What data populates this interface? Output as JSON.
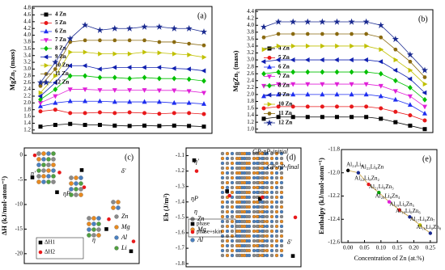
{
  "chart_data": [
    {
      "type": "line",
      "panel_label": "(a)",
      "ylabel": "MgZn₂ (mass)",
      "ylim": [
        1.1,
        4.85
      ],
      "yticks": [
        1.2,
        1.4,
        1.6,
        1.8,
        {
          "value": 2,
          "label": "2.0"
        },
        2.2,
        2.4,
        2.6,
        2.8,
        {
          "value": 3,
          "label": "3.0"
        },
        3.2,
        3.4,
        3.6,
        3.8,
        {
          "value": 4,
          "label": "4.0"
        },
        4.2,
        4.4,
        4.6,
        4.8
      ],
      "legend": "upper left",
      "series": [
        {
          "name": "4 Zn",
          "color": "#000000",
          "marker": "square",
          "values": [
            1.3,
            1.35,
            1.38,
            1.35,
            1.35,
            1.33,
            1.32,
            1.33,
            1.32,
            1.33,
            1.32,
            1.3
          ]
        },
        {
          "name": "5 Zn",
          "color": "#e8191b",
          "marker": "circle",
          "values": [
            1.75,
            1.8,
            1.7,
            1.7,
            1.72,
            1.7,
            1.72,
            1.7,
            1.68,
            1.7,
            1.7,
            1.67
          ]
        },
        {
          "name": "6 Zn",
          "color": "#1f2ff0",
          "marker": "triangle-up",
          "values": [
            1.9,
            2.0,
            2.05,
            2.05,
            2.05,
            2.03,
            2.03,
            2.03,
            2.03,
            2.0,
            2.0,
            1.97
          ]
        },
        {
          "name": "7 Zn",
          "color": "#e020d8",
          "marker": "triangle-down",
          "values": [
            2.0,
            2.2,
            2.4,
            2.4,
            2.38,
            2.38,
            2.38,
            2.38,
            2.37,
            2.37,
            2.35,
            2.3
          ]
        },
        {
          "name": "8 Zn",
          "color": "#00c000",
          "marker": "diamond",
          "values": [
            2.1,
            2.4,
            2.8,
            2.8,
            2.75,
            2.75,
            2.72,
            2.75,
            2.72,
            2.72,
            2.7,
            2.65
          ]
        },
        {
          "name": "9 Zn",
          "color": "#1020b0",
          "marker": "triangle-left",
          "values": [
            2.2,
            2.6,
            3.1,
            3.1,
            3.0,
            3.05,
            3.05,
            3.05,
            3.05,
            3.02,
            3.0,
            2.95
          ]
        },
        {
          "name": "10 Zn",
          "color": "#c0c000",
          "marker": "triangle-right",
          "values": [
            2.3,
            2.8,
            3.5,
            3.5,
            3.45,
            3.45,
            3.45,
            3.5,
            3.48,
            3.45,
            3.42,
            3.35
          ]
        },
        {
          "name": "11 Zn",
          "color": "#8a6a10",
          "marker": "hexagon",
          "values": [
            2.5,
            3.0,
            3.8,
            3.85,
            3.85,
            3.85,
            3.85,
            3.85,
            3.8,
            3.8,
            3.75,
            3.7
          ]
        },
        {
          "name": "12 Zn",
          "color": "#1a2a90",
          "marker": "star",
          "values": [
            2.6,
            3.2,
            3.9,
            4.3,
            4.15,
            4.2,
            4.2,
            4.25,
            4.25,
            4.2,
            4.2,
            4.1
          ]
        }
      ]
    },
    {
      "type": "line",
      "panel_label": "(b)",
      "ylabel": "MgZn₂ (mass)",
      "ylim": [
        0.9,
        4.45
      ],
      "yticks": [
        {
          "value": 1,
          "label": "1.0"
        },
        1.2,
        1.4,
        1.6,
        1.8,
        {
          "value": 2,
          "label": "2.0"
        },
        2.2,
        2.4,
        2.6,
        2.8,
        {
          "value": 3,
          "label": "3.0"
        },
        3.2,
        3.4,
        3.6,
        3.8,
        {
          "value": 4,
          "label": "4.0"
        },
        4.2,
        4.4
      ],
      "legend": "lower left",
      "series": [
        {
          "name": "4 Zn",
          "color": "#000000",
          "marker": "square",
          "values": [
            1.3,
            1.35,
            1.35,
            1.35,
            1.35,
            1.35,
            1.35,
            1.35,
            1.3,
            1.2,
            1.1,
            1.0
          ]
        },
        {
          "name": "5 Zn",
          "color": "#e8191b",
          "marker": "circle",
          "values": [
            1.6,
            1.65,
            1.65,
            1.65,
            1.65,
            1.65,
            1.65,
            1.65,
            1.6,
            1.5,
            1.4,
            1.25
          ]
        },
        {
          "name": "6 Zn",
          "color": "#1f2ff0",
          "marker": "triangle-up",
          "values": [
            1.95,
            2.0,
            2.0,
            2.0,
            2.0,
            2.0,
            2.0,
            2.0,
            1.95,
            1.85,
            1.7,
            1.45
          ]
        },
        {
          "name": "7 Zn",
          "color": "#e020d8",
          "marker": "triangle-down",
          "values": [
            2.25,
            2.3,
            2.3,
            2.3,
            2.3,
            2.3,
            2.3,
            2.3,
            2.25,
            2.1,
            1.95,
            1.65
          ]
        },
        {
          "name": "8 Zn",
          "color": "#00c000",
          "marker": "diamond",
          "values": [
            2.6,
            2.65,
            2.65,
            2.65,
            2.65,
            2.65,
            2.65,
            2.65,
            2.6,
            2.4,
            2.2,
            1.85
          ]
        },
        {
          "name": "9 Zn",
          "color": "#1020b0",
          "marker": "triangle-left",
          "values": [
            2.95,
            3.0,
            3.0,
            3.0,
            3.0,
            3.0,
            3.0,
            3.0,
            2.95,
            2.7,
            2.45,
            2.05
          ]
        },
        {
          "name": "10 Zn",
          "color": "#c0c000",
          "marker": "triangle-right",
          "values": [
            3.3,
            3.4,
            3.4,
            3.4,
            3.4,
            3.4,
            3.4,
            3.4,
            3.3,
            3.0,
            2.7,
            2.3
          ]
        },
        {
          "name": "11 Zn",
          "color": "#8a6a10",
          "marker": "hexagon",
          "values": [
            3.65,
            3.75,
            3.75,
            3.75,
            3.75,
            3.75,
            3.75,
            3.75,
            3.65,
            3.3,
            2.95,
            2.5
          ]
        },
        {
          "name": "12 Zn",
          "color": "#1a2a90",
          "marker": "star",
          "values": [
            3.95,
            4.1,
            4.1,
            4.1,
            4.1,
            4.1,
            4.1,
            4.1,
            4.0,
            3.6,
            3.15,
            2.7
          ]
        }
      ]
    },
    {
      "type": "scatter",
      "panel_label": "(c)",
      "ylabel": "ΔH (kJ/mol·atom⁻¹)",
      "ylim": [
        -22,
        1.5
      ],
      "yticks": [
        0,
        -5,
        -10,
        -15,
        -20
      ],
      "legend": "lower left",
      "annotations": [
        "η'",
        "ηP",
        "δ'",
        "η",
        "Zn",
        "Mg",
        "Al",
        "Li"
      ],
      "series": [
        {
          "name": "ΔH1",
          "color": "#000000",
          "marker": "square",
          "values": [
            -4.5,
            -7.5,
            -3,
            -15,
            -19.5
          ]
        },
        {
          "name": "ΔH2",
          "color": "#e8191b",
          "marker": "circle",
          "values": [
            0,
            -3.5,
            -6.5,
            -13,
            -17.5
          ]
        }
      ]
    },
    {
      "type": "scatter",
      "panel_label": "(d)",
      "ylabel": "Eb (J/m²)",
      "ylim": [
        -1.82,
        -1.05
      ],
      "yticks": [
        -1.1,
        -1.2,
        -1.3,
        -1.4,
        -1.5,
        -1.6,
        -1.7,
        -1.8
      ],
      "legend": "lower left",
      "annotations": [
        "η'",
        "ηP",
        "η",
        "δ'",
        "GP-ηP-initial",
        "GP-ηP-final",
        "Zn",
        "Mg",
        "Al"
      ],
      "series": [
        {
          "name": "phase",
          "color": "#000000",
          "marker": "square",
          "values": [
            -1.13,
            -1.33,
            -1.38,
            -1.75
          ]
        },
        {
          "name": "phase+skin",
          "color": "#e8191b",
          "marker": "circle",
          "values": [
            -1.2,
            -1.36,
            -1.37,
            -1.5
          ]
        }
      ]
    },
    {
      "type": "scatter",
      "panel_label": "(e)",
      "ylabel": "Enthalpy (kJ/mol·atom⁻¹)",
      "xlabel": "Concentration of Zn (at.%)",
      "xlim": [
        -0.02,
        0.27
      ],
      "ylim": [
        -12.6,
        -11.8
      ],
      "xticks": [
        {
          "value": 0,
          "label": "0.00"
        },
        0.05,
        {
          "value": 0.1,
          "label": "0.10"
        },
        0.15,
        {
          "value": 0.2,
          "label": "0.20"
        },
        0.25
      ],
      "yticks": [
        -11.8,
        {
          "value": -12,
          "label": "-12.0"
        },
        -12.2,
        -12.4,
        -12.6
      ],
      "x": [
        0,
        0.03125,
        0.0625,
        0.09375,
        0.125,
        0.15625,
        0.1875,
        0.21875,
        0.25
      ],
      "values": [
        -11.98,
        -12.0,
        -12.1,
        -12.17,
        -12.25,
        -12.32,
        -12.38,
        -12.45,
        -12.52
      ],
      "color": "#1a2a90",
      "point_labels": [
        "Al₂₄Li₈",
        "Al₂₃Li₈Zn",
        "Al₂₂Li₈Zn₂",
        "Al₂₁Li₈Zn₃",
        "Al₂₀Li₈Zn₄",
        "Al₁₉Li₈Zn₅",
        "Al₁₈Li₈Zn₆",
        "Al₁₇Li₈Zn₇",
        "Al₁₆Li₈Zn₈"
      ]
    }
  ]
}
